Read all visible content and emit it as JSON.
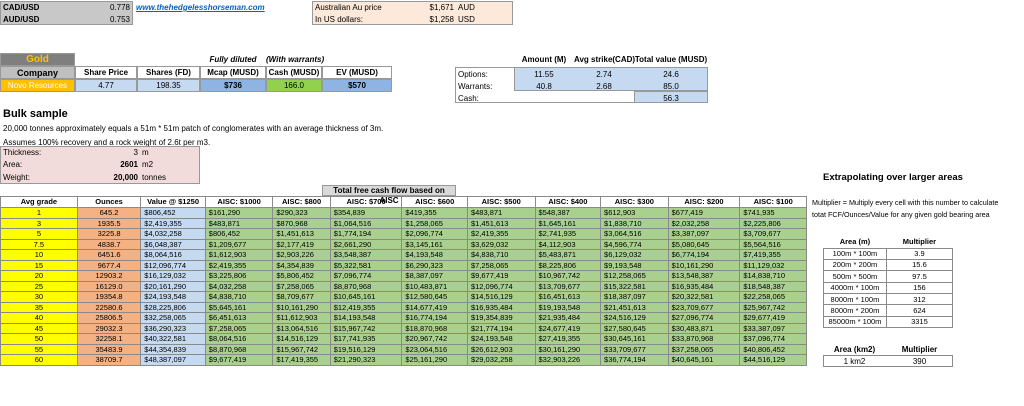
{
  "fx": [
    {
      "label": "CAD/USD",
      "value": "0.778"
    },
    {
      "label": "AUD/USD",
      "value": "0.753"
    }
  ],
  "link": "www.thehedgelesshorseman.com",
  "au_price": {
    "label1": "Australian Au price",
    "value1": "$1,671",
    "unit1": "AUD",
    "label2": "In US dollars:",
    "value2": "$1,258",
    "unit2": "USD"
  },
  "company": {
    "gold": "Gold",
    "company_h": "Company",
    "share_price_h": "Share Price",
    "shares_h": "Shares (FD)",
    "fully_diluted": "Fully diluted",
    "mcap_h": "Mcap (MUSD)",
    "with_warrants": "(With warrants)",
    "cash_h": "Cash (MUSD)",
    "ev_h": "EV (MUSD)",
    "name": "Novo Resources",
    "share_price": "4.77",
    "shares": "198.35",
    "mcap": "$736",
    "cash": "166.0",
    "ev": "$570"
  },
  "options": {
    "amount_h": "Amount (M)",
    "strike_h": "Avg strike(CAD)",
    "total_h": "Total value (MUSD)",
    "rows": [
      {
        "label": "Options:",
        "amount": "11.55",
        "strike": "2.74",
        "total": "24.6"
      },
      {
        "label": "Warrants:",
        "amount": "40.8",
        "strike": "2.68",
        "total": "85.0"
      },
      {
        "label": "Cash:",
        "amount": "",
        "strike": "",
        "total": "56.3"
      }
    ]
  },
  "bulk": {
    "title": "Bulk sample",
    "line1": "20,000 tonnes approximately equals a 51m * 51m patch of conglomerates with an average thickness of 3m.",
    "line2": "Assumes 100% recovery and a rock weight of 2.6t per m3.",
    "rows": [
      {
        "label": "Thickness:",
        "value": "3",
        "unit": "m"
      },
      {
        "label": "Area:",
        "value": "2601",
        "unit": "m2"
      },
      {
        "label": "Weight:",
        "value": "20,000",
        "unit": "tonnes"
      }
    ]
  },
  "fcf": {
    "title": "Total free cash flow based on AISC",
    "headers": [
      "Avg grade",
      "Ounces",
      "Value @ $1250",
      "AISC: $1000",
      "AISC: $800",
      "AISC: $700",
      "AISC: $600",
      "AISC: $500",
      "AISC: $400",
      "AISC: $300",
      "AISC: $200",
      "AISC: $100"
    ],
    "rows": [
      [
        "1",
        "645.2",
        "$806,452",
        "$161,290",
        "$290,323",
        "$354,839",
        "$419,355",
        "$483,871",
        "$548,387",
        "$612,903",
        "$677,419",
        "$741,935"
      ],
      [
        "3",
        "1935.5",
        "$2,419,355",
        "$483,871",
        "$870,968",
        "$1,064,516",
        "$1,258,065",
        "$1,451,613",
        "$1,645,161",
        "$1,838,710",
        "$2,032,258",
        "$2,225,806"
      ],
      [
        "5",
        "3225.8",
        "$4,032,258",
        "$806,452",
        "$1,451,613",
        "$1,774,194",
        "$2,096,774",
        "$2,419,355",
        "$2,741,935",
        "$3,064,516",
        "$3,387,097",
        "$3,709,677"
      ],
      [
        "7.5",
        "4838.7",
        "$6,048,387",
        "$1,209,677",
        "$2,177,419",
        "$2,661,290",
        "$3,145,161",
        "$3,629,032",
        "$4,112,903",
        "$4,596,774",
        "$5,080,645",
        "$5,564,516"
      ],
      [
        "10",
        "6451.6",
        "$8,064,516",
        "$1,612,903",
        "$2,903,226",
        "$3,548,387",
        "$4,193,548",
        "$4,838,710",
        "$5,483,871",
        "$6,129,032",
        "$6,774,194",
        "$7,419,355"
      ],
      [
        "15",
        "9677.4",
        "$12,096,774",
        "$2,419,355",
        "$4,354,839",
        "$5,322,581",
        "$6,290,323",
        "$7,258,065",
        "$8,225,806",
        "$9,193,548",
        "$10,161,290",
        "$11,129,032"
      ],
      [
        "20",
        "12903.2",
        "$16,129,032",
        "$3,225,806",
        "$5,806,452",
        "$7,096,774",
        "$8,387,097",
        "$9,677,419",
        "$10,967,742",
        "$12,258,065",
        "$13,548,387",
        "$14,838,710"
      ],
      [
        "25",
        "16129.0",
        "$20,161,290",
        "$4,032,258",
        "$7,258,065",
        "$8,870,968",
        "$10,483,871",
        "$12,096,774",
        "$13,709,677",
        "$15,322,581",
        "$16,935,484",
        "$18,548,387"
      ],
      [
        "30",
        "19354.8",
        "$24,193,548",
        "$4,838,710",
        "$8,709,677",
        "$10,645,161",
        "$12,580,645",
        "$14,516,129",
        "$16,451,613",
        "$18,387,097",
        "$20,322,581",
        "$22,258,065"
      ],
      [
        "35",
        "22580.6",
        "$28,225,806",
        "$5,645,161",
        "$10,161,290",
        "$12,419,355",
        "$14,677,419",
        "$16,935,484",
        "$19,193,548",
        "$21,451,613",
        "$23,709,677",
        "$25,967,742"
      ],
      [
        "40",
        "25806.5",
        "$32,258,065",
        "$6,451,613",
        "$11,612,903",
        "$14,193,548",
        "$16,774,194",
        "$19,354,839",
        "$21,935,484",
        "$24,516,129",
        "$27,096,774",
        "$29,677,419"
      ],
      [
        "45",
        "29032.3",
        "$36,290,323",
        "$7,258,065",
        "$13,064,516",
        "$15,967,742",
        "$18,870,968",
        "$21,774,194",
        "$24,677,419",
        "$27,580,645",
        "$30,483,871",
        "$33,387,097"
      ],
      [
        "50",
        "32258.1",
        "$40,322,581",
        "$8,064,516",
        "$14,516,129",
        "$17,741,935",
        "$20,967,742",
        "$24,193,548",
        "$27,419,355",
        "$30,645,161",
        "$33,870,968",
        "$37,096,774"
      ],
      [
        "55",
        "35483.9",
        "$44,354,839",
        "$8,870,968",
        "$15,967,742",
        "$19,516,129",
        "$23,064,516",
        "$26,612,903",
        "$30,161,290",
        "$33,709,677",
        "$37,258,065",
        "$40,806,452"
      ],
      [
        "60",
        "38709.7",
        "$48,387,097",
        "$9,677,419",
        "$17,419,355",
        "$21,290,323",
        "$25,161,290",
        "$29,032,258",
        "$32,903,226",
        "$36,774,194",
        "$40,645,161",
        "$44,516,129"
      ]
    ]
  },
  "extra": {
    "title": "Extrapolating over larger areas",
    "note1": "Multiplier = Multiply every cell with this number to calculate",
    "note2": "totat FCF/Ounces/Value for any given gold bearing area",
    "area_h": "Area (m)",
    "mult_h": "Multiplier",
    "rows": [
      [
        "100m * 100m",
        "3.9"
      ],
      [
        "200m * 200m",
        "15.6"
      ],
      [
        "500m * 500m",
        "97.5"
      ],
      [
        "4000m * 100m",
        "156"
      ],
      [
        "8000m * 100m",
        "312"
      ],
      [
        "8000m * 200m",
        "624"
      ],
      [
        "85000m * 100m",
        "3315"
      ]
    ],
    "km_h": "Area (km2)",
    "km_mult_h": "Multiplier",
    "km_row": [
      "1 km2",
      "390"
    ]
  },
  "colors": {
    "header_gray": "#bfbfbf",
    "gold_header": "#7f7f7f",
    "company_orange": "#ffc000",
    "blue": "#c5d9f1",
    "green": "#a9d08e",
    "cash_green": "#92d050",
    "pink": "#f2dcdb",
    "yellow": "#ffff00",
    "orange": "#f4b183",
    "au_bg": "#fde9d9"
  }
}
